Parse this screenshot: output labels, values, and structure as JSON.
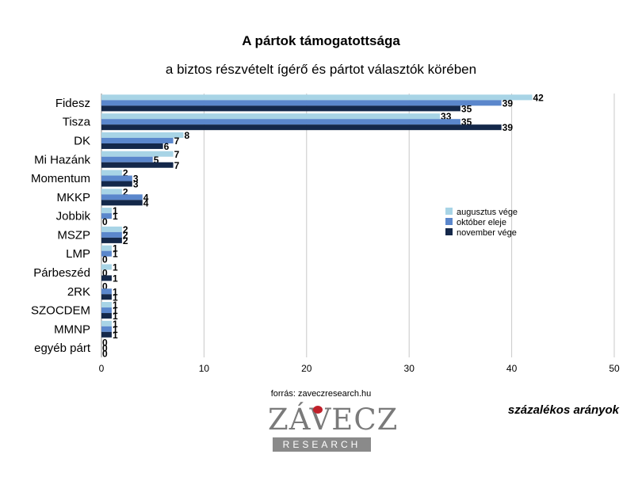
{
  "chart_data": {
    "type": "bar",
    "orientation": "horizontal",
    "title": "A pártok támogatottsága",
    "subtitle": "a biztos részvételt ígérő és pártot választók körében",
    "categories": [
      "Fidesz",
      "Tisza",
      "DK",
      "Mi Hazánk",
      "Momentum",
      "MKKP",
      "Jobbik",
      "MSZP",
      "LMP",
      "Párbeszéd",
      "2RK",
      "SZOCDEM",
      "MMNP",
      "egyéb párt"
    ],
    "series": [
      {
        "name": "augusztus vége",
        "color": "#a8d4e6",
        "values": [
          42,
          33,
          8,
          7,
          2,
          2,
          1,
          2,
          1,
          1,
          0,
          1,
          1,
          0
        ]
      },
      {
        "name": "október eleje",
        "color": "#5b87cc",
        "values": [
          39,
          35,
          7,
          5,
          3,
          4,
          1,
          2,
          1,
          0,
          1,
          1,
          1,
          0
        ]
      },
      {
        "name": "november vége",
        "color": "#14284a",
        "values": [
          35,
          39,
          6,
          7,
          3,
          4,
          0,
          2,
          0,
          1,
          1,
          1,
          1,
          0
        ]
      }
    ],
    "xlim": [
      0,
      50
    ],
    "xticks": [
      0,
      10,
      20,
      30,
      40,
      50
    ],
    "grid": true,
    "legend_position": "right"
  },
  "source": "forrás: zaveczresearch.hu",
  "units_label": "százalékos arányok",
  "logo": {
    "word": "ZÁVECZ",
    "sub": "RESEARCH"
  }
}
